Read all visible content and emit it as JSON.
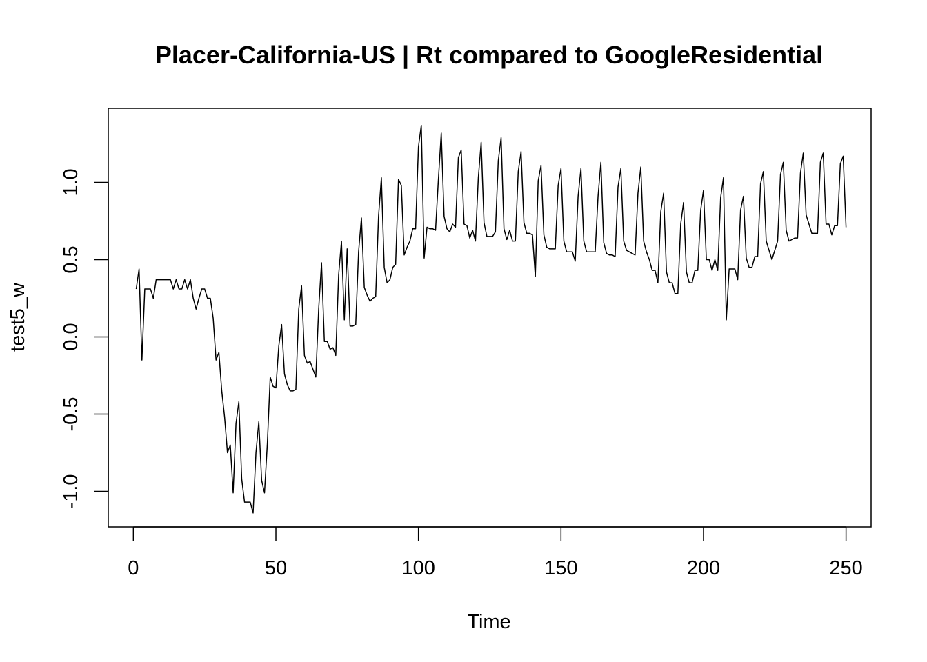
{
  "chart_data": {
    "type": "line",
    "title": "Placer-California-US | Rt compared to GoogleResidential",
    "xlabel": "Time",
    "ylabel": "test5_w",
    "xlim": [
      -8.8,
      258.8
    ],
    "ylim": [
      -1.23,
      1.48
    ],
    "x_ticks": [
      0,
      50,
      100,
      150,
      200,
      250
    ],
    "x_tick_labels": [
      "0",
      "50",
      "100",
      "150",
      "200",
      "250"
    ],
    "y_ticks": [
      -1.0,
      -0.5,
      0.0,
      0.5,
      1.0
    ],
    "y_tick_labels": [
      "-1.0",
      "-0.5",
      "0.0",
      "0.5",
      "1.0"
    ],
    "grid": false,
    "legend": "none",
    "line_color": "#000000",
    "series": [
      {
        "x_start": 1,
        "x_step": 1,
        "values": [
          0.31,
          0.44,
          -0.15,
          0.31,
          0.31,
          0.31,
          0.25,
          0.37,
          0.37,
          0.37,
          0.37,
          0.37,
          0.37,
          0.31,
          0.37,
          0.31,
          0.31,
          0.37,
          0.31,
          0.37,
          0.25,
          0.18,
          0.25,
          0.31,
          0.31,
          0.25,
          0.25,
          0.12,
          -0.15,
          -0.1,
          -0.35,
          -0.52,
          -0.75,
          -0.7,
          -1.01,
          -0.56,
          -0.42,
          -0.92,
          -1.07,
          -1.07,
          -1.07,
          -1.14,
          -0.75,
          -0.55,
          -0.93,
          -1.01,
          -0.69,
          -0.26,
          -0.32,
          -0.33,
          -0.06,
          0.08,
          -0.24,
          -0.31,
          -0.35,
          -0.35,
          -0.34,
          0.18,
          0.33,
          -0.12,
          -0.17,
          -0.16,
          -0.21,
          -0.26,
          0.18,
          0.48,
          -0.03,
          -0.03,
          -0.08,
          -0.07,
          -0.12,
          0.4,
          0.62,
          0.11,
          0.57,
          0.07,
          0.07,
          0.08,
          0.55,
          0.77,
          0.32,
          0.27,
          0.23,
          0.25,
          0.26,
          0.78,
          1.03,
          0.45,
          0.35,
          0.37,
          0.45,
          0.47,
          1.02,
          0.98,
          0.53,
          0.58,
          0.62,
          0.7,
          0.7,
          1.23,
          1.37,
          0.51,
          0.71,
          0.7,
          0.7,
          0.69,
          1.02,
          1.32,
          0.78,
          0.7,
          0.68,
          0.73,
          0.71,
          1.16,
          1.21,
          0.73,
          0.72,
          0.64,
          0.69,
          0.62,
          1.03,
          1.26,
          0.74,
          0.65,
          0.65,
          0.65,
          0.68,
          1.14,
          1.29,
          0.7,
          0.63,
          0.69,
          0.62,
          0.62,
          1.07,
          1.2,
          0.74,
          0.67,
          0.67,
          0.66,
          0.39,
          1.01,
          1.11,
          0.66,
          0.58,
          0.57,
          0.57,
          0.57,
          0.98,
          1.09,
          0.62,
          0.55,
          0.55,
          0.55,
          0.49,
          0.91,
          1.09,
          0.62,
          0.55,
          0.55,
          0.55,
          0.55,
          0.91,
          1.13,
          0.61,
          0.54,
          0.53,
          0.53,
          0.52,
          0.97,
          1.09,
          0.62,
          0.56,
          0.55,
          0.54,
          0.53,
          0.93,
          1.1,
          0.62,
          0.55,
          0.5,
          0.43,
          0.43,
          0.35,
          0.81,
          0.93,
          0.42,
          0.35,
          0.35,
          0.28,
          0.28,
          0.73,
          0.87,
          0.42,
          0.35,
          0.35,
          0.43,
          0.43,
          0.82,
          0.95,
          0.5,
          0.5,
          0.43,
          0.5,
          0.43,
          0.9,
          1.03,
          0.11,
          0.44,
          0.44,
          0.44,
          0.37,
          0.82,
          0.91,
          0.51,
          0.45,
          0.45,
          0.52,
          0.52,
          0.99,
          1.07,
          0.62,
          0.56,
          0.5,
          0.56,
          0.62,
          1.05,
          1.13,
          0.69,
          0.62,
          0.63,
          0.64,
          0.64,
          1.06,
          1.19,
          0.79,
          0.73,
          0.67,
          0.67,
          0.67,
          1.13,
          1.19,
          0.73,
          0.73,
          0.66,
          0.72,
          0.72,
          1.12,
          1.17,
          0.71
        ]
      }
    ]
  }
}
